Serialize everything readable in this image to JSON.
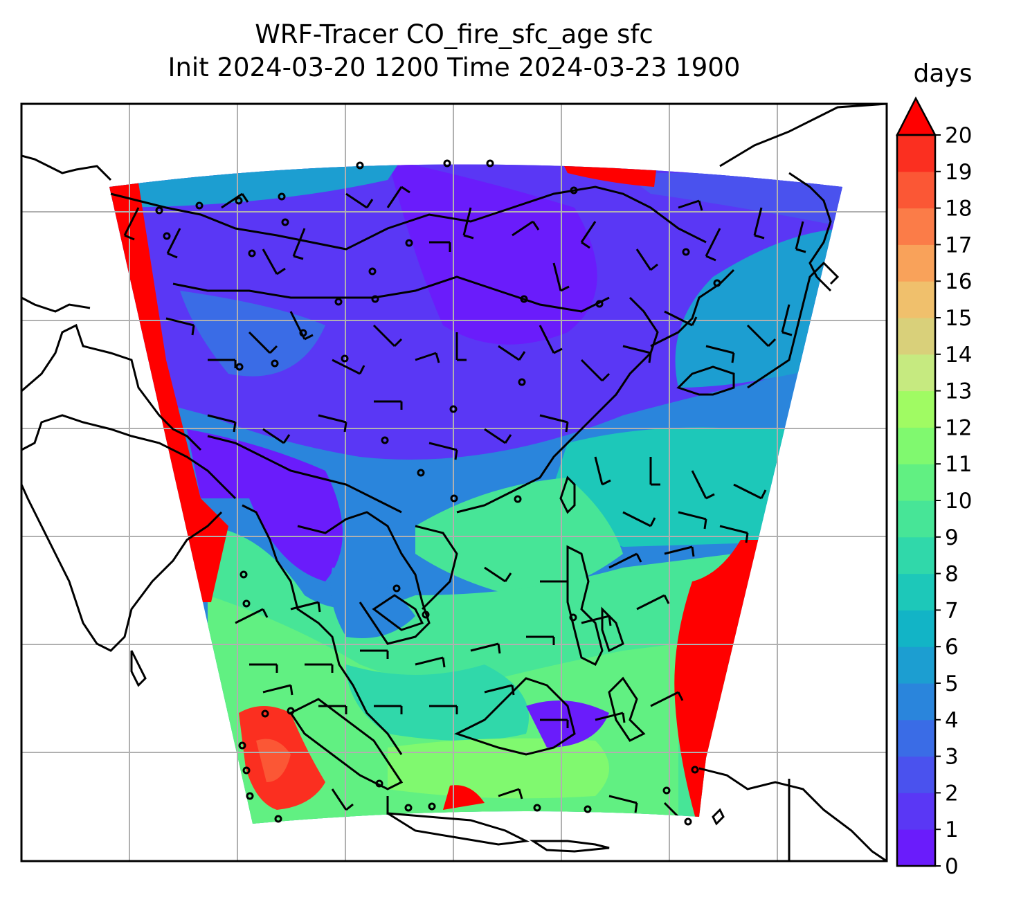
{
  "title": {
    "line1": "WRF-Tracer CO_fire_sfc_age sfc",
    "line2": "Init 2024-03-20 1200 Time 2024-03-23 1900"
  },
  "colorbar": {
    "unit": "days",
    "ticks": [
      "0",
      "1",
      "2",
      "3",
      "4",
      "5",
      "6",
      "7",
      "8",
      "9",
      "10",
      "11",
      "12",
      "13",
      "14",
      "15",
      "16",
      "17",
      "18",
      "19",
      "20"
    ],
    "extend": "max",
    "colors": [
      "#6a1cfb",
      "#5a37f5",
      "#4a52ee",
      "#3a6ce6",
      "#2a85dc",
      "#1c9ed1",
      "#12b4c6",
      "#1dc8b9",
      "#30d8aa",
      "#47e597",
      "#61f082",
      "#80f96f",
      "#a0fb63",
      "#c6ea80",
      "#d9d07a",
      "#f0c06c",
      "#f9a25a",
      "#fb7c48",
      "#fb5735",
      "#fb2f20",
      "#ff0000"
    ]
  },
  "map": {
    "gridlines": true,
    "wind_barbs": true,
    "coastlines": true
  }
}
